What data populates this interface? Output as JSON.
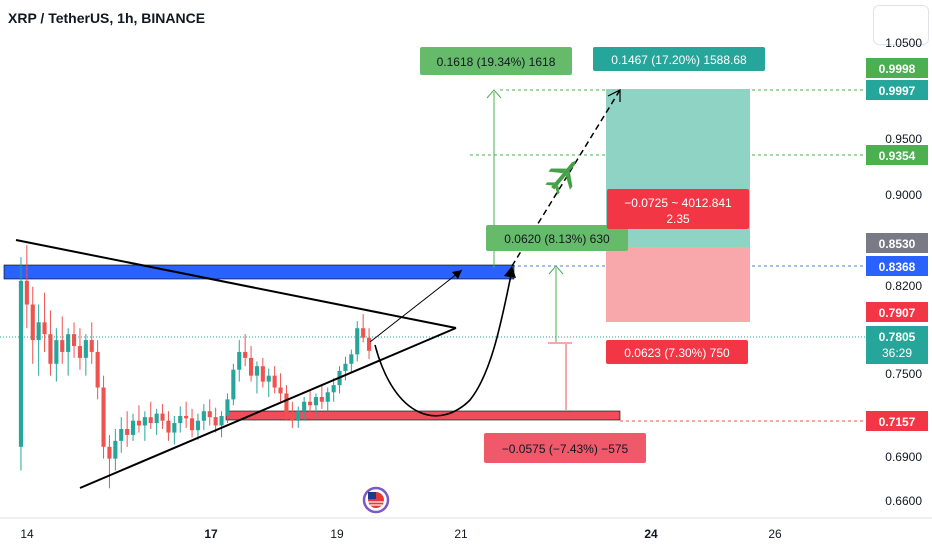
{
  "header": {
    "title": "XRP / TetherUS, 1h, BINANCE"
  },
  "colors": {
    "up": "#26a69a",
    "down": "#ef5350",
    "target_zone": "#8fd3c4",
    "stop_zone": "#f8a8aa",
    "resistance": "#2962ff",
    "support": "#ef4d5b"
  },
  "chart_data": {
    "type": "candlestick",
    "title": "XRP / TetherUS, 1h, BINANCE",
    "x_tick_labels": [
      "14",
      "17",
      "19",
      "21",
      "24",
      "26"
    ],
    "y_tick_labels": [
      "1.0500",
      "0.9500",
      "0.9000",
      "0.8200",
      "0.7500",
      "0.6900",
      "0.6600"
    ],
    "ylim": [
      0.645,
      1.06
    ],
    "price_labels": [
      {
        "value": "0.9998",
        "color": "#4caf50"
      },
      {
        "value": "0.9997",
        "color": "#26a69a"
      },
      {
        "value": "0.9354",
        "color": "#4caf50"
      },
      {
        "value": "0.8530",
        "color": "#787b86"
      },
      {
        "value": "0.8368",
        "color": "#2962ff"
      },
      {
        "value": "0.7907",
        "color": "#f23645"
      },
      {
        "value": "0.7805",
        "color": "#26a69a",
        "countdown": "36:29"
      },
      {
        "value": "0.7157",
        "color": "#f23645"
      }
    ],
    "annotations": [
      {
        "text": "0.1618 (19.34%) 1618",
        "color": "#66bb6a"
      },
      {
        "text": "0.1467 (17.20%) 1588.68",
        "color": "#26a69a"
      },
      {
        "text": "0.0620 (8.13%) 630",
        "color": "#66bb6a"
      },
      {
        "text": "−0.0725 ~ 4012.841",
        "text2": "2.35",
        "color": "#f23645"
      },
      {
        "text": "0.0623 (7.30%) 750",
        "color": "#f23645"
      },
      {
        "text": "−0.0575 (−7.43%) −575",
        "color": "#f0596a"
      }
    ],
    "candles": [
      [
        0.7,
        0.86,
        0.68,
        0.84
      ],
      [
        0.84,
        0.87,
        0.8,
        0.82
      ],
      [
        0.82,
        0.835,
        0.77,
        0.79
      ],
      [
        0.79,
        0.82,
        0.76,
        0.805
      ],
      [
        0.805,
        0.83,
        0.78,
        0.795
      ],
      [
        0.795,
        0.815,
        0.76,
        0.77
      ],
      [
        0.77,
        0.8,
        0.755,
        0.79
      ],
      [
        0.79,
        0.81,
        0.77,
        0.78
      ],
      [
        0.78,
        0.8,
        0.76,
        0.795
      ],
      [
        0.795,
        0.805,
        0.775,
        0.785
      ],
      [
        0.785,
        0.8,
        0.765,
        0.775
      ],
      [
        0.775,
        0.795,
        0.76,
        0.79
      ],
      [
        0.79,
        0.805,
        0.77,
        0.78
      ],
      [
        0.78,
        0.79,
        0.74,
        0.75
      ],
      [
        0.75,
        0.76,
        0.69,
        0.7
      ],
      [
        0.7,
        0.71,
        0.665,
        0.69
      ],
      [
        0.69,
        0.715,
        0.68,
        0.705
      ],
      [
        0.705,
        0.725,
        0.695,
        0.715
      ],
      [
        0.715,
        0.73,
        0.7,
        0.71
      ],
      [
        0.71,
        0.728,
        0.705,
        0.722
      ],
      [
        0.722,
        0.735,
        0.712,
        0.718
      ],
      [
        0.718,
        0.73,
        0.705,
        0.725
      ],
      [
        0.725,
        0.738,
        0.715,
        0.72
      ],
      [
        0.72,
        0.732,
        0.71,
        0.728
      ],
      [
        0.728,
        0.736,
        0.715,
        0.722
      ],
      [
        0.722,
        0.73,
        0.705,
        0.712
      ],
      [
        0.712,
        0.726,
        0.702,
        0.72
      ],
      [
        0.72,
        0.734,
        0.712,
        0.726
      ],
      [
        0.726,
        0.738,
        0.716,
        0.724
      ],
      [
        0.724,
        0.732,
        0.708,
        0.714
      ],
      [
        0.714,
        0.728,
        0.706,
        0.722
      ],
      [
        0.722,
        0.736,
        0.714,
        0.73
      ],
      [
        0.73,
        0.74,
        0.718,
        0.725
      ],
      [
        0.725,
        0.733,
        0.712,
        0.718
      ],
      [
        0.718,
        0.73,
        0.708,
        0.726
      ],
      [
        0.726,
        0.745,
        0.72,
        0.74
      ],
      [
        0.74,
        0.77,
        0.735,
        0.765
      ],
      [
        0.765,
        0.79,
        0.755,
        0.78
      ],
      [
        0.78,
        0.795,
        0.768,
        0.775
      ],
      [
        0.775,
        0.785,
        0.755,
        0.76
      ],
      [
        0.76,
        0.772,
        0.745,
        0.768
      ],
      [
        0.768,
        0.775,
        0.75,
        0.755
      ],
      [
        0.755,
        0.766,
        0.742,
        0.76
      ],
      [
        0.76,
        0.768,
        0.745,
        0.75
      ],
      [
        0.75,
        0.762,
        0.738,
        0.745
      ],
      [
        0.745,
        0.752,
        0.722,
        0.728
      ],
      [
        0.728,
        0.738,
        0.716,
        0.722
      ],
      [
        0.722,
        0.734,
        0.716,
        0.73
      ],
      [
        0.73,
        0.742,
        0.722,
        0.738
      ],
      [
        0.738,
        0.748,
        0.728,
        0.735
      ],
      [
        0.735,
        0.745,
        0.725,
        0.742
      ],
      [
        0.742,
        0.752,
        0.732,
        0.738
      ],
      [
        0.738,
        0.75,
        0.73,
        0.746
      ],
      [
        0.746,
        0.758,
        0.738,
        0.752
      ],
      [
        0.752,
        0.768,
        0.745,
        0.764
      ],
      [
        0.764,
        0.776,
        0.756,
        0.77
      ],
      [
        0.77,
        0.782,
        0.762,
        0.778
      ],
      [
        0.778,
        0.806,
        0.772,
        0.8
      ],
      [
        0.8,
        0.812,
        0.788,
        0.792
      ],
      [
        0.792,
        0.8,
        0.774,
        0.781
      ]
    ]
  }
}
